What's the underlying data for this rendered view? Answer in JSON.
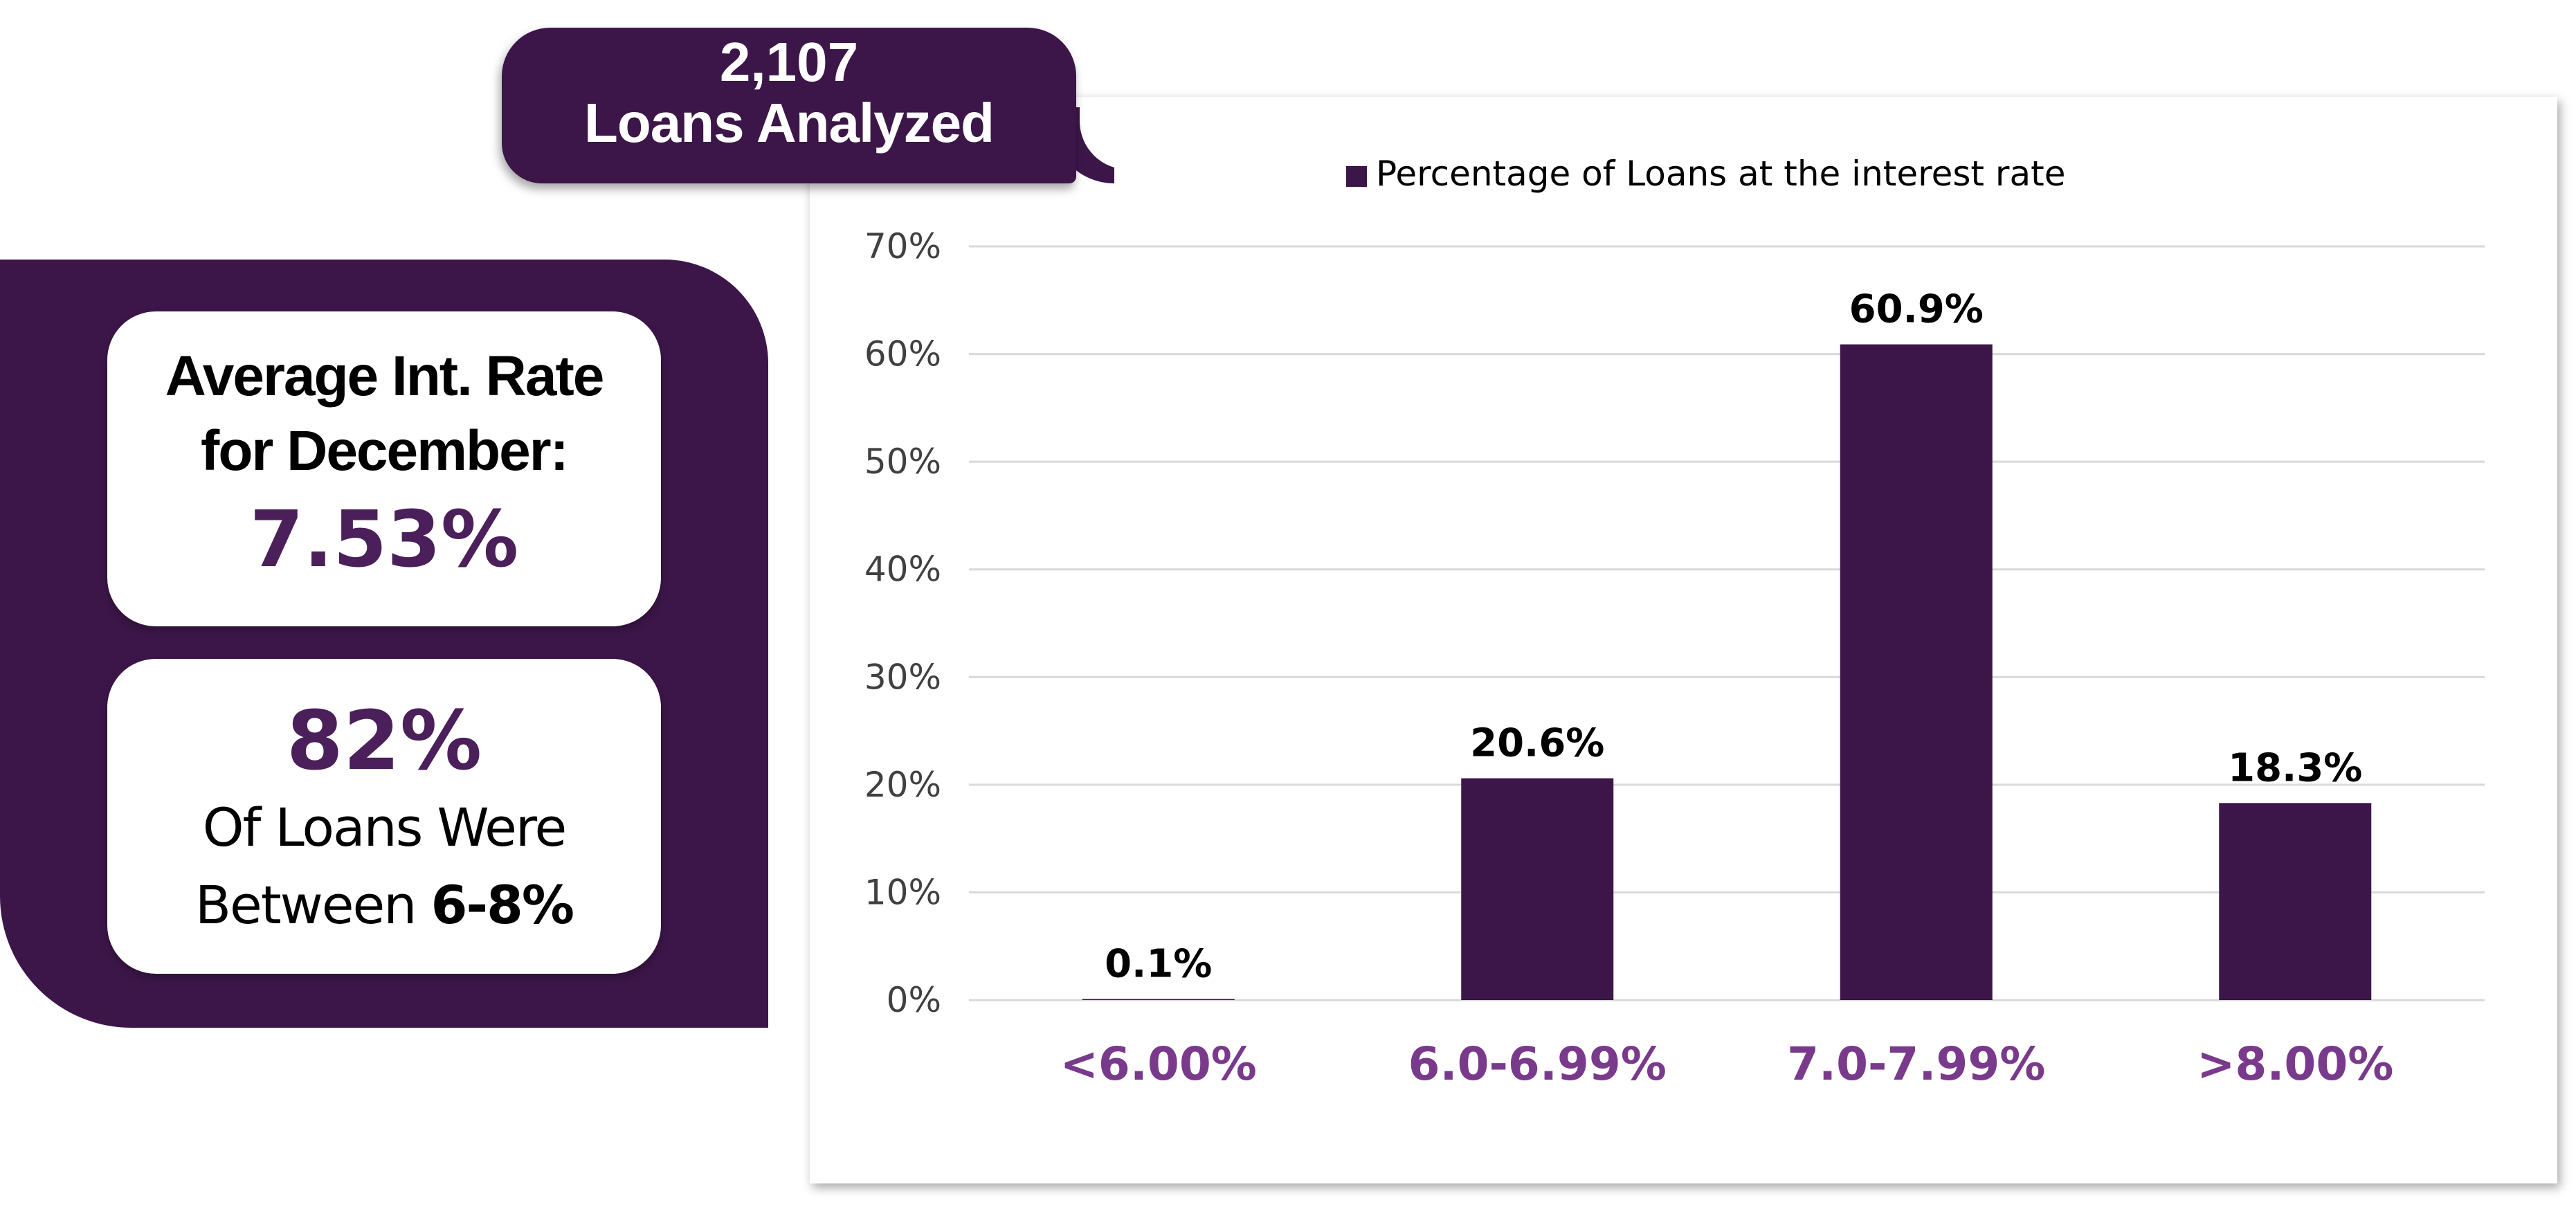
{
  "header": {
    "count": "2,107",
    "label": "Loans Analyzed"
  },
  "average_card": {
    "title_line1": "Average Int. Rate",
    "title_line2": "for December:",
    "value": "7.53%"
  },
  "range_card": {
    "value": "82%",
    "line1": "Of Loans Were",
    "line2_prefix": "Between ",
    "line2_bold": "6-8%"
  },
  "colors": {
    "accent": "#3c1649",
    "category_label": "#7a3a8c",
    "grid": "#d9d9d9"
  },
  "chart_data": {
    "type": "bar",
    "legend": "Percentage of Loans at the interest rate",
    "legend_position": "top",
    "categories": [
      "<6.00%",
      "6.0-6.99%",
      "7.0-7.99%",
      ">8.00%"
    ],
    "values": [
      0.1,
      20.6,
      60.9,
      18.3
    ],
    "data_labels": [
      "0.1%",
      "20.6%",
      "60.9%",
      "18.3%"
    ],
    "yticks": [
      "0%",
      "10%",
      "20%",
      "30%",
      "40%",
      "50%",
      "60%",
      "70%"
    ],
    "ylim": [
      0,
      70
    ],
    "grid": true
  }
}
